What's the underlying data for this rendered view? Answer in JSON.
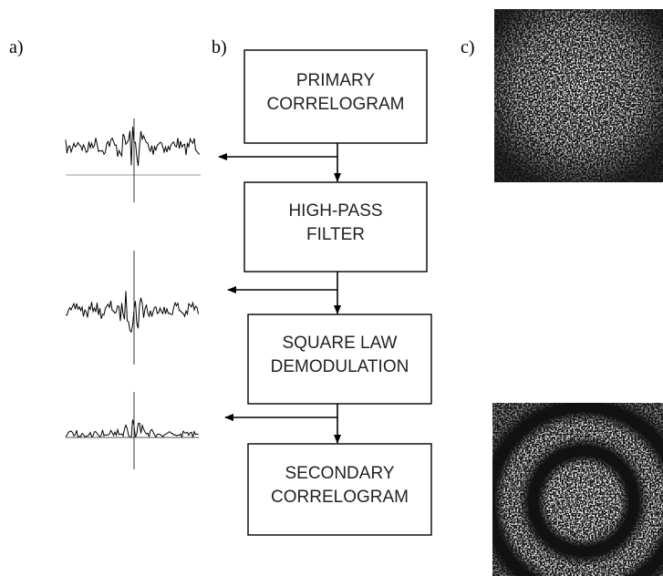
{
  "panels": {
    "a": "a)",
    "b": "b)",
    "c": "c)"
  },
  "boxes": [
    {
      "lines": [
        "PRIMARY",
        "CORRELOGRAM"
      ]
    },
    {
      "lines": [
        "HIGH-PASS",
        "FILTER"
      ]
    },
    {
      "lines": [
        "SQUARE LAW",
        "DEMODULATION"
      ]
    },
    {
      "lines": [
        "SECONDARY",
        "CORRELOGRAM"
      ]
    }
  ]
}
